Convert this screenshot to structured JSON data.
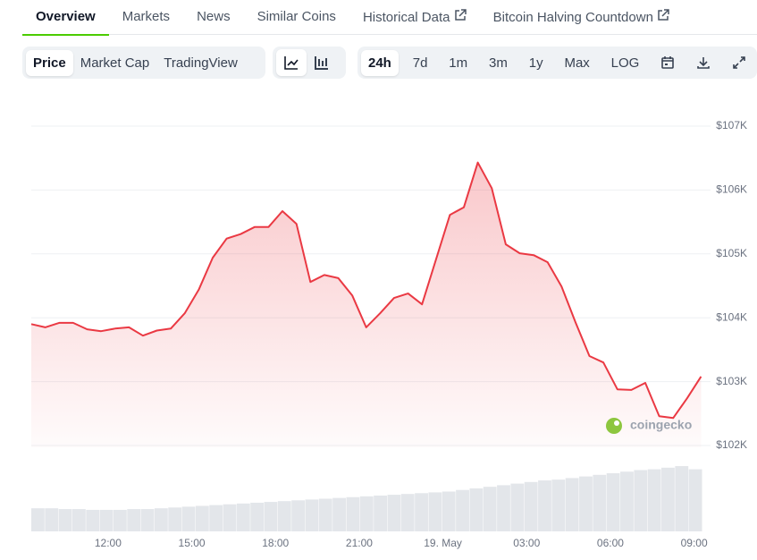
{
  "tabs": [
    "Overview",
    "Markets",
    "News",
    "Similar Coins",
    "Historical Data",
    "Bitcoin Halving Countdown"
  ],
  "chart_modes": [
    "Price",
    "Market Cap",
    "TradingView"
  ],
  "ranges": [
    "24h",
    "7d",
    "1m",
    "3m",
    "1y",
    "Max",
    "LOG"
  ],
  "watermark": "coingecko",
  "chart_data": {
    "type": "line",
    "x": [
      9.25,
      9.75,
      10.25,
      10.75,
      11.25,
      11.75,
      12.25,
      12.75,
      13.25,
      13.75,
      14.25,
      14.75,
      15.25,
      15.75,
      16.25,
      16.75,
      17.25,
      17.75,
      18.25,
      18.75,
      19.25,
      19.75,
      20.25,
      20.75,
      21.25,
      21.75,
      22.25,
      22.75,
      23.25,
      23.75,
      24.25,
      24.75,
      25.25,
      25.75,
      26.25,
      26.75,
      27.25,
      27.75,
      28.25,
      28.75,
      29.25,
      29.75,
      30.25,
      30.75,
      31.25,
      31.75,
      32.25,
      32.75,
      33.25
    ],
    "series": [
      {
        "color": "#ea3943",
        "values": [
          103900,
          103850,
          103920,
          103920,
          103820,
          103790,
          103830,
          103850,
          103720,
          103800,
          103830,
          104070,
          104440,
          104940,
          105240,
          105310,
          105420,
          105420,
          105670,
          105470,
          104560,
          104670,
          104620,
          104350,
          103850,
          104070,
          104310,
          104380,
          104210,
          104910,
          105610,
          105730,
          106430,
          106030,
          105150,
          105010,
          104980,
          104870,
          104490,
          103930,
          103400,
          103300,
          102880,
          102870,
          102980,
          102460,
          102430,
          102740,
          103080
        ]
      }
    ],
    "volume": {
      "color": "#e3e6ea",
      "values": [
        29,
        29,
        28,
        28,
        27,
        27,
        27,
        28,
        28,
        29,
        30,
        31,
        32,
        33,
        34,
        35,
        36,
        37,
        38,
        39,
        40,
        41,
        42,
        43,
        44,
        45,
        46,
        47,
        48,
        49,
        50,
        52,
        54,
        56,
        58,
        60,
        62,
        64,
        65,
        67,
        69,
        71,
        73,
        75,
        77,
        78,
        80,
        82,
        78
      ]
    },
    "vlim": [
      0,
      100
    ],
    "xlim": [
      9.25,
      33.3
    ],
    "xticks": [
      {
        "value": 12,
        "label": "12:00"
      },
      {
        "value": 15,
        "label": "15:00"
      },
      {
        "value": 18,
        "label": "18:00"
      },
      {
        "value": 21,
        "label": "21:00"
      },
      {
        "value": 24,
        "label": "19. May"
      },
      {
        "value": 27,
        "label": "03:00"
      },
      {
        "value": 30,
        "label": "06:00"
      },
      {
        "value": 33,
        "label": "09:00"
      }
    ],
    "ylim": [
      102000,
      107000
    ],
    "yticks": [
      {
        "value": 102000,
        "label": "$102K"
      },
      {
        "value": 103000,
        "label": "$103K"
      },
      {
        "value": 104000,
        "label": "$104K"
      },
      {
        "value": 105000,
        "label": "$105K"
      },
      {
        "value": 106000,
        "label": "$106K"
      },
      {
        "value": 107000,
        "label": "$107K"
      }
    ],
    "grid": true
  }
}
